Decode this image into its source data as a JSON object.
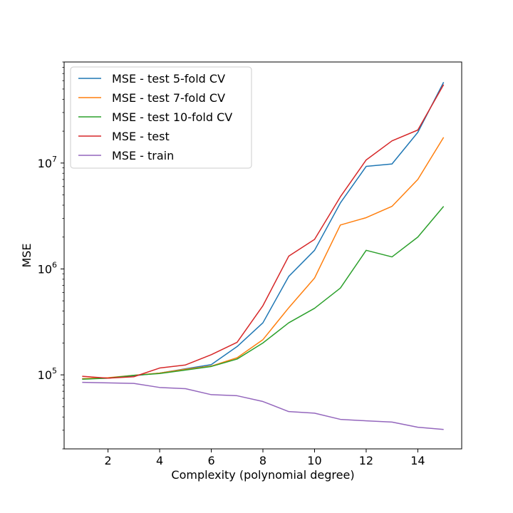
{
  "chart_data": {
    "type": "line",
    "title": "",
    "xlabel": "Complexity (polynomial degree)",
    "ylabel": "MSE",
    "yscale": "log",
    "xlim": [
      0.3,
      15.7
    ],
    "ylim": [
      20000,
      90000000
    ],
    "x": [
      1,
      2,
      3,
      4,
      5,
      6,
      7,
      8,
      9,
      10,
      11,
      12,
      13,
      14,
      15
    ],
    "x_ticks": [
      2,
      4,
      6,
      8,
      10,
      12,
      14
    ],
    "x_tick_labels": [
      "2",
      "4",
      "6",
      "8",
      "10",
      "12",
      "14"
    ],
    "y_ticks": [
      100000,
      1000000,
      10000000
    ],
    "y_tick_base": "10",
    "y_tick_exponents": [
      "5",
      "6",
      "7"
    ],
    "grid": false,
    "legend_position": "upper-left",
    "series": [
      {
        "name": "MSE - test 5-fold CV",
        "color": "#1f77b4",
        "values": [
          92000,
          93000,
          98000,
          104000,
          114000,
          125000,
          185000,
          310000,
          850000,
          1500000,
          4200000,
          9300000,
          9800000,
          19500000,
          58000000
        ]
      },
      {
        "name": "MSE - test 7-fold CV",
        "color": "#ff7f0e",
        "values": [
          92000,
          94000,
          99000,
          104000,
          113000,
          121000,
          145000,
          215000,
          430000,
          820000,
          2600000,
          3050000,
          3900000,
          7000000,
          17500000
        ]
      },
      {
        "name": "MSE - test 10-fold CV",
        "color": "#2ca02c",
        "values": [
          91000,
          93000,
          99000,
          103000,
          111000,
          120000,
          141000,
          200000,
          310000,
          425000,
          660000,
          1500000,
          1300000,
          2000000,
          3900000
        ]
      },
      {
        "name": "MSE - test",
        "color": "#d62728",
        "values": [
          97000,
          93000,
          96000,
          116000,
          124000,
          155000,
          203000,
          450000,
          1320000,
          1900000,
          4800000,
          10700000,
          16200000,
          20500000,
          55000000
        ]
      },
      {
        "name": "MSE - train",
        "color": "#9467bd",
        "values": [
          85000,
          84000,
          83000,
          76000,
          74000,
          65000,
          63500,
          56000,
          45000,
          43500,
          38000,
          36800,
          35800,
          32000,
          30500
        ]
      }
    ]
  }
}
